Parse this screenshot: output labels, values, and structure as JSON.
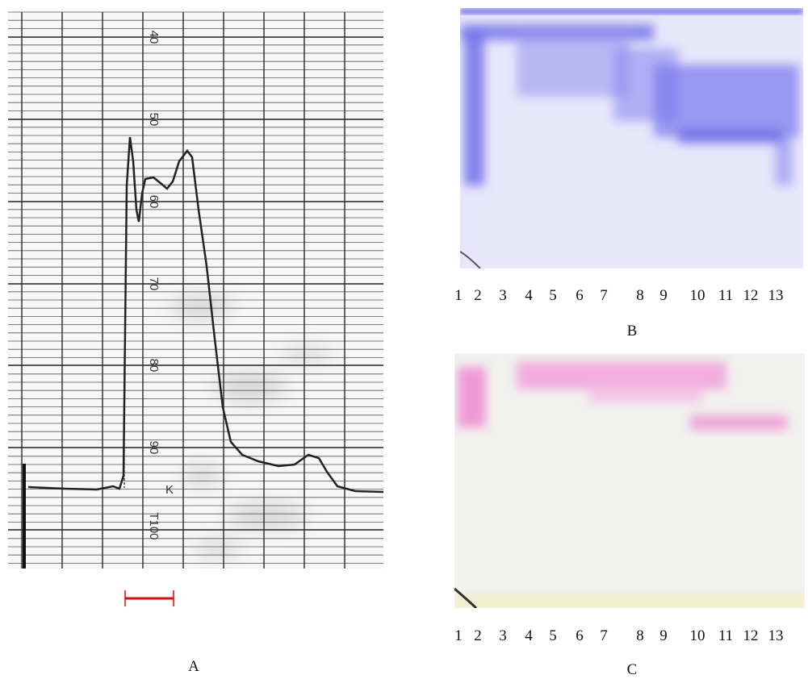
{
  "panel_a": {
    "label": "A",
    "scale_labels": [
      "40",
      "50",
      "60",
      "70",
      "80",
      "90",
      "100"
    ],
    "marks": [
      "T",
      "K"
    ]
  },
  "panel_b": {
    "label": "B",
    "lanes": [
      "1",
      "2",
      "3",
      "4",
      "5",
      "6",
      "7",
      "8",
      "9",
      "10",
      "11",
      "12",
      "13"
    ]
  },
  "panel_c": {
    "label": "C",
    "lanes": [
      "1",
      "2",
      "3",
      "4",
      "5",
      "6",
      "7",
      "8",
      "9",
      "10",
      "11",
      "12",
      "13"
    ]
  }
}
